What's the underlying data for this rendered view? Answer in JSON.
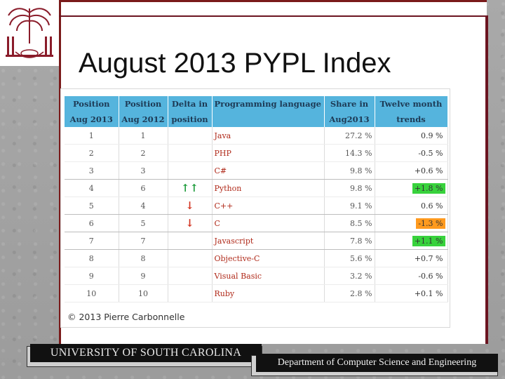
{
  "slide": {
    "title": "August 2013 PYPL Index"
  },
  "table": {
    "headers": {
      "c1_line1": "Position",
      "c1_line2": "Aug 2013",
      "c2_line1": "Position",
      "c2_line2": "Aug 2012",
      "c3_line1": "Delta in",
      "c3_line2": "position",
      "c4": "Programming language",
      "c5_line1": "Share in",
      "c5_line2": "Aug2013",
      "c6_line1": "Twelve month",
      "c6_line2": "trends"
    },
    "rows": [
      {
        "pos2013": "1",
        "pos2012": "1",
        "delta": "",
        "lang": "Java",
        "share": "27.2 %",
        "trend": "0.9 %",
        "trend_style": "plain"
      },
      {
        "pos2013": "2",
        "pos2012": "2",
        "delta": "",
        "lang": "PHP",
        "share": "14.3 %",
        "trend": "-0.5 %",
        "trend_style": "plain"
      },
      {
        "pos2013": "3",
        "pos2012": "3",
        "delta": "",
        "lang": "C#",
        "share": "9.8 %",
        "trend": "+0.6 %",
        "trend_style": "plain"
      },
      {
        "pos2013": "4",
        "pos2012": "6",
        "delta": "↑↑",
        "lang": "Python",
        "share": "9.8 %",
        "trend": "+1.8 %",
        "trend_style": "green"
      },
      {
        "pos2013": "5",
        "pos2012": "4",
        "delta": "↓",
        "lang": "C++",
        "share": "9.1 %",
        "trend": "0.6 %",
        "trend_style": "plain"
      },
      {
        "pos2013": "6",
        "pos2012": "5",
        "delta": "↓",
        "lang": "C",
        "share": "8.5 %",
        "trend": "-1.3 %",
        "trend_style": "orange"
      },
      {
        "pos2013": "7",
        "pos2012": "7",
        "delta": "",
        "lang": "Javascript",
        "share": "7.8 %",
        "trend": "+1.1 %",
        "trend_style": "green"
      },
      {
        "pos2013": "8",
        "pos2012": "8",
        "delta": "",
        "lang": "Objective-C",
        "share": "5.6 %",
        "trend": "+0.7 %",
        "trend_style": "plain"
      },
      {
        "pos2013": "9",
        "pos2012": "9",
        "delta": "",
        "lang": "Visual Basic",
        "share": "3.2 %",
        "trend": "-0.6 %",
        "trend_style": "plain"
      },
      {
        "pos2013": "10",
        "pos2012": "10",
        "delta": "",
        "lang": "Ruby",
        "share": "2.8 %",
        "trend": "+0.1 %",
        "trend_style": "plain"
      }
    ],
    "copyright": "© 2013 Pierre Carbonnelle"
  },
  "footer": {
    "left": "UNIVERSITY OF SOUTH CAROLINA",
    "right": "Department of Computer Science and Engineering"
  },
  "colors": {
    "header_blue": "#55b4dd",
    "lang_red": "#b02a1a",
    "up_green": "#1c9b3a",
    "down_red": "#d2301d",
    "pill_green": "#38d23c",
    "pill_orange": "#ff9a1e",
    "border_maroon": "#6b1420"
  }
}
